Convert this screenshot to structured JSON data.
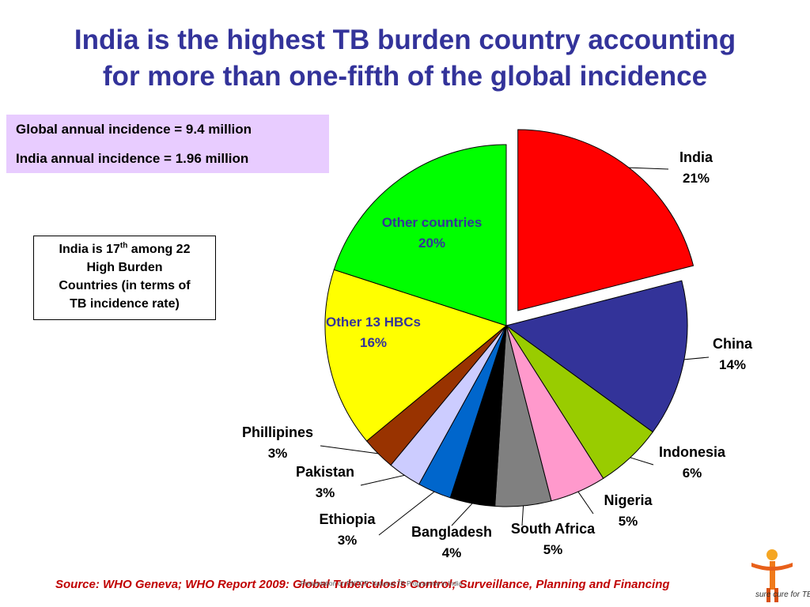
{
  "title_line1": "India is the highest TB burden country accounting",
  "title_line2": "for more than one-fifth of the global incidence",
  "info": {
    "global": "Global annual incidence = 9.4 million",
    "india": "India annual incidence = 1.96 million"
  },
  "rank_box": {
    "text1": "India is 17",
    "sup": "th",
    "text2": " among 22",
    "line2": "High Burden",
    "line3": "Countries (in terms of",
    "line4": "TB incidence rate)"
  },
  "source": "Source: WHO Geneva; WHO Report 2009: Global Tuberculosis Control; Surveillance, Planning and Financing",
  "footer_note": "Presentation on RNTCP: National TB Programme in India",
  "logo_text": "sure cure for TB.",
  "colors": {
    "title": "#33339a",
    "source": "#c00000",
    "info_bg": "#e8ccff"
  },
  "chart_data": {
    "type": "pie",
    "start_angle_deg": 0,
    "exploded": "India",
    "slices": [
      {
        "label": "India",
        "pct_label": "21%",
        "value": 21,
        "color": "#ff0000"
      },
      {
        "label": "China",
        "pct_label": "14%",
        "value": 14,
        "color": "#333399"
      },
      {
        "label": "Indonesia",
        "pct_label": "6%",
        "value": 6,
        "color": "#99cc00"
      },
      {
        "label": "Nigeria",
        "pct_label": "5%",
        "value": 5,
        "color": "#ff99cc"
      },
      {
        "label": "South Africa",
        "pct_label": "5%",
        "value": 5,
        "color": "#808080"
      },
      {
        "label": "Bangladesh",
        "pct_label": "4%",
        "value": 4,
        "color": "#000000"
      },
      {
        "label": "Ethiopia",
        "pct_label": "3%",
        "value": 3,
        "color": "#0066cc"
      },
      {
        "label": "Pakistan",
        "pct_label": "3%",
        "value": 3,
        "color": "#ccccff"
      },
      {
        "label": "Phillipines",
        "pct_label": "3%",
        "value": 3,
        "color": "#993300"
      },
      {
        "label": "Other 13 HBCs",
        "pct_label": "16%",
        "value": 16,
        "color": "#ffff00"
      },
      {
        "label": "Other countries",
        "pct_label": "20%",
        "value": 20,
        "color": "#00ff00"
      }
    ]
  }
}
